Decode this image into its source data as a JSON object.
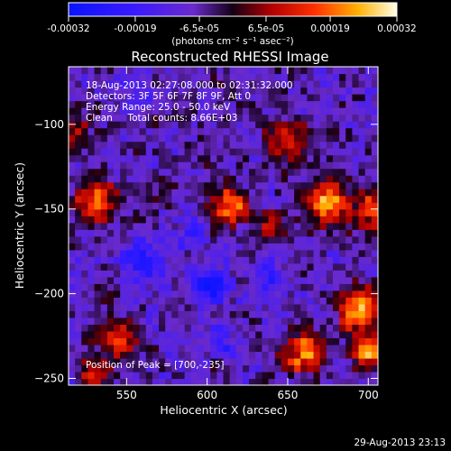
{
  "chart_data": {
    "type": "heatmap",
    "title": "Reconstructed RHESSI Image",
    "xlabel": "Heliocentric X (arcsec)",
    "ylabel": "Heliocentric Y (arcsec)",
    "xlim": [
      514,
      706
    ],
    "ylim": [
      -254,
      -66
    ],
    "x_ticks": [
      550,
      600,
      650,
      700
    ],
    "y_ticks": [
      -250,
      -200,
      -150,
      -100
    ],
    "colorbar": {
      "range": [
        -0.00032,
        0.00032
      ],
      "tick_labels": [
        "-0.00032",
        "-0.00019",
        "-6.5e-05",
        "6.5e-05",
        "0.00019",
        "0.00032"
      ],
      "tick_values": [
        -0.00032,
        -0.00019,
        -6.5e-05,
        6.5e-05,
        0.00019,
        0.00032
      ],
      "units": "(photons cm⁻² s⁻¹ asec⁻²)"
    },
    "annotations": [
      "18-Aug-2013 02:27:08.000 to 02:31:32.000",
      "Detectors: 3F 5F 6F 7F 8F 9F, Att 0",
      "Energy Range: 25.0 - 50.0 keV",
      "Clean     Total counts: 8.66E+03"
    ],
    "peak_label": "Position of Peak = [700,-235]",
    "peak_position": [
      700,
      -235
    ],
    "sources": [
      {
        "x": 530,
        "y": -145,
        "amp": 0.00026,
        "sigma": 9
      },
      {
        "x": 520,
        "y": -105,
        "amp": 0.00012,
        "sigma": 7
      },
      {
        "x": 575,
        "y": -135,
        "amp": 8e-05,
        "sigma": 6
      },
      {
        "x": 614,
        "y": -148,
        "amp": 0.00028,
        "sigma": 8
      },
      {
        "x": 640,
        "y": -160,
        "amp": 0.00014,
        "sigma": 7
      },
      {
        "x": 650,
        "y": -110,
        "amp": 0.00018,
        "sigma": 9
      },
      {
        "x": 675,
        "y": -145,
        "amp": 0.0003,
        "sigma": 9
      },
      {
        "x": 702,
        "y": -150,
        "amp": 0.00026,
        "sigma": 7
      },
      {
        "x": 695,
        "y": -210,
        "amp": 0.00032,
        "sigma": 9
      },
      {
        "x": 660,
        "y": -235,
        "amp": 0.00026,
        "sigma": 9
      },
      {
        "x": 700,
        "y": -235,
        "amp": 0.00032,
        "sigma": 6
      },
      {
        "x": 545,
        "y": -228,
        "amp": 0.00024,
        "sigma": 8
      },
      {
        "x": 530,
        "y": -248,
        "amp": 0.00018,
        "sigma": 6
      },
      {
        "x": 583,
        "y": -95,
        "amp": 8e-05,
        "sigma": 5
      },
      {
        "x": 606,
        "y": -115,
        "amp": 5e-05,
        "sigma": 5
      }
    ],
    "negatives": [
      {
        "x": 560,
        "y": -180,
        "amp": -0.00018,
        "sigma": 9
      },
      {
        "x": 602,
        "y": -195,
        "amp": -0.00024,
        "sigma": 8
      },
      {
        "x": 590,
        "y": -165,
        "amp": -0.0001,
        "sigma": 6
      },
      {
        "x": 640,
        "y": -190,
        "amp": -0.00012,
        "sigma": 7
      },
      {
        "x": 555,
        "y": -80,
        "amp": -0.0001,
        "sigma": 7
      },
      {
        "x": 610,
        "y": -228,
        "amp": -0.00012,
        "sigma": 6
      }
    ]
  },
  "footer": {
    "date": "29-Aug-2013 23:13"
  }
}
